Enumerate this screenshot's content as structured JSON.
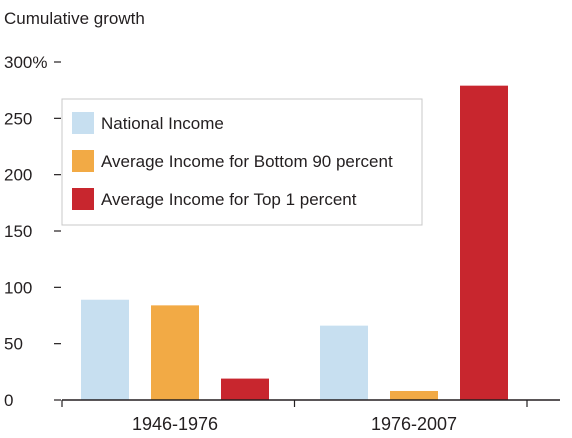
{
  "chart_data": {
    "type": "bar",
    "ylabel": "Cumulative growth",
    "categories": [
      "1946-1976",
      "1976-2007"
    ],
    "series": [
      {
        "name": "National Income",
        "color": "#c7dff0",
        "values": [
          89,
          66
        ]
      },
      {
        "name": "Average Income for Bottom 90 percent",
        "color": "#f2aa45",
        "values": [
          84,
          8
        ]
      },
      {
        "name": "Average Income for Top 1 percent",
        "color": "#c8262e",
        "values": [
          19,
          279
        ]
      }
    ],
    "ylim": [
      0,
      300
    ],
    "yticks": [
      {
        "value": 0,
        "label": "0"
      },
      {
        "value": 50,
        "label": "50"
      },
      {
        "value": 100,
        "label": "100"
      },
      {
        "value": 150,
        "label": "150"
      },
      {
        "value": 200,
        "label": "200"
      },
      {
        "value": 250,
        "label": "250"
      },
      {
        "value": 300,
        "label": "300%"
      }
    ],
    "grid": false,
    "legend_position": "top-left"
  }
}
